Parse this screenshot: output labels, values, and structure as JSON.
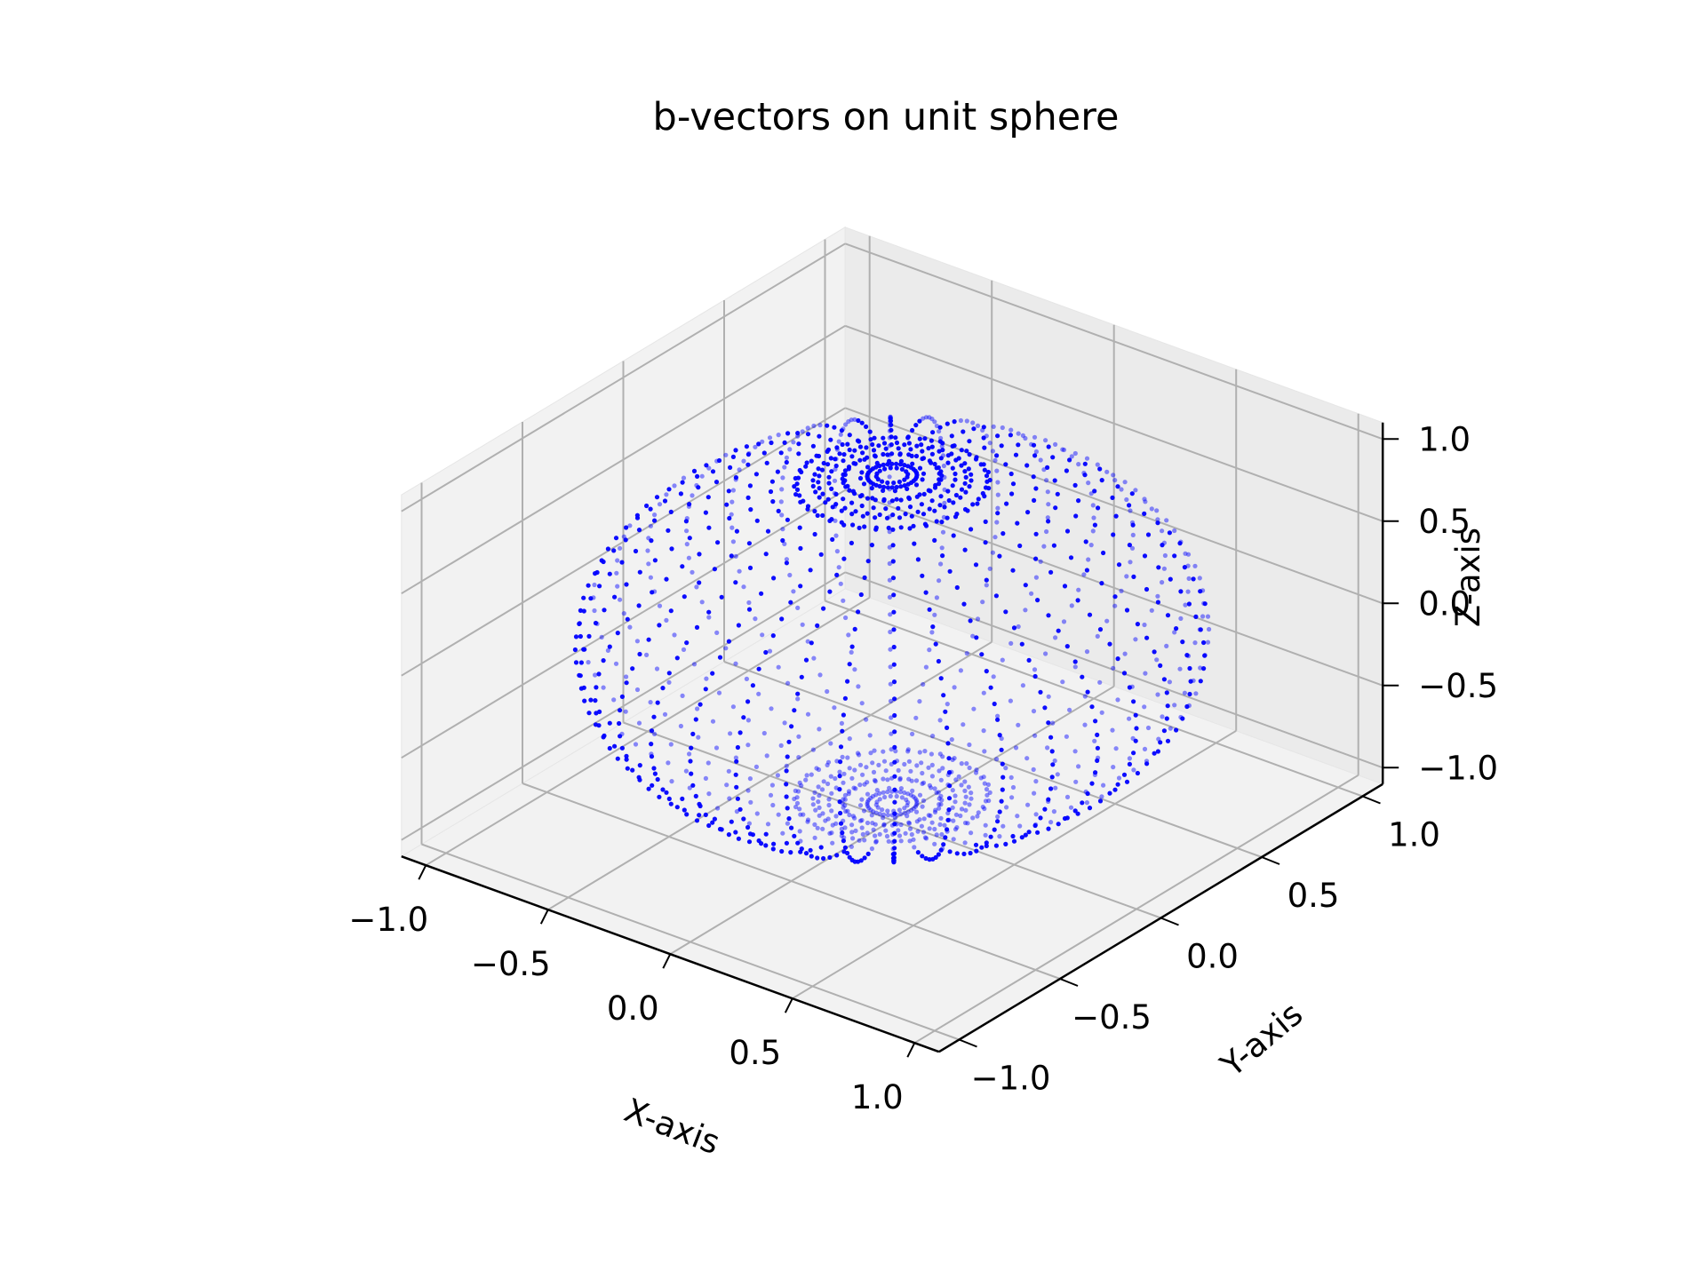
{
  "chart_data": {
    "type": "scatter",
    "title": "b-vectors on unit sphere",
    "xlabel": "X-axis",
    "ylabel": "Y-axis",
    "zlabel": "Z-axis",
    "xlim": [
      -1.1,
      1.1
    ],
    "ylim": [
      -1.1,
      1.1
    ],
    "zlim": [
      -1.1,
      1.1
    ],
    "x_ticks": [
      -1.0,
      -0.5,
      0.0,
      0.5,
      1.0
    ],
    "y_ticks": [
      -1.0,
      -0.5,
      0.0,
      0.5,
      1.0
    ],
    "z_ticks": [
      -1.0,
      -0.5,
      0.0,
      0.5,
      1.0
    ],
    "x_tick_labels": [
      "−1.0",
      "−0.5",
      "0.0",
      "0.5",
      "1.0"
    ],
    "y_tick_labels": [
      "−1.0",
      "−0.5",
      "0.0",
      "0.5",
      "1.0"
    ],
    "z_tick_labels": [
      "−1.0",
      "−0.5",
      "0.0",
      "0.5",
      "1.0"
    ],
    "grid": true,
    "view": {
      "elev": 30,
      "azim": -60
    },
    "series": [
      {
        "color": "#0000ff",
        "marker": "point",
        "description_of_points": "unit vectors on sphere arranged in meridian/parallel pattern with concentric rings around the poles",
        "meridians": 36,
        "polar_steps": 40,
        "pole_rings": [
          0.05,
          0.1,
          0.15,
          0.2,
          0.25,
          0.3
        ]
      }
    ],
    "colors": {
      "points": "#0000ff",
      "pane": "#f2f2f2",
      "grid": "#b0b0b0",
      "axis": "#000000"
    }
  }
}
